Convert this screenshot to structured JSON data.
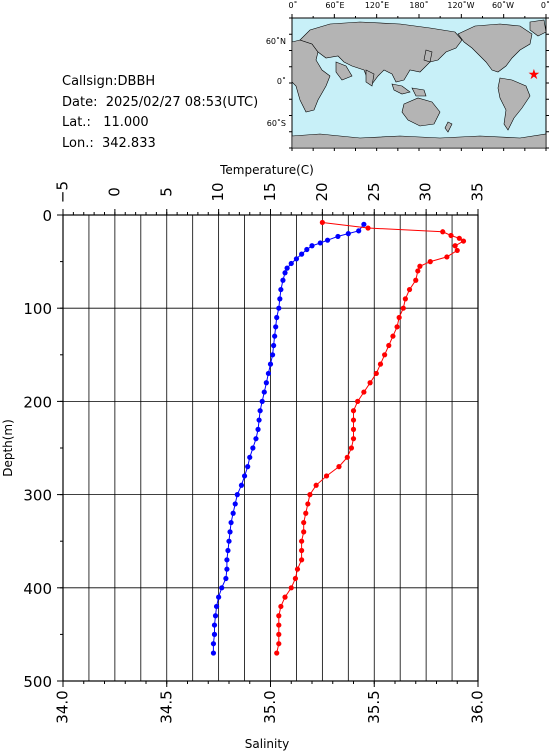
{
  "station": {
    "callsign": "Callsign:DBBH",
    "date": "Date:  2025/02/27 08:53(UTC)",
    "lat": "Lat.:   11.000",
    "lon": "Lon.:  342.833"
  },
  "map": {
    "top_labels": [
      "0˚",
      "60˚E",
      "120˚E",
      "180˚",
      "120˚W",
      "60˚W",
      "0˚"
    ],
    "left_labels": [
      "60˚N",
      "0˚",
      "60˚S"
    ],
    "ocean_color": "#c8f0f8",
    "land_color": "#b4b4b4",
    "marker_color": "#ff0000",
    "marker_lon": 342.833,
    "marker_lat": 11.0
  },
  "chart_data": {
    "type": "line",
    "y_axis": {
      "label": "Depth(m)",
      "range": [
        0,
        500
      ],
      "ticks": [
        "0",
        "100",
        "200",
        "300",
        "400",
        "500"
      ],
      "inverted": true
    },
    "temperature_axis": {
      "label": "Temperature(C)",
      "range": [
        -5,
        35
      ],
      "ticks": [
        "−5",
        "0",
        "5",
        "10",
        "15",
        "20",
        "25",
        "30",
        "35"
      ]
    },
    "salinity_axis": {
      "label": "Salinity",
      "range": [
        34.0,
        36.0
      ],
      "ticks": [
        "34.0",
        "34.5",
        "35.0",
        "35.5",
        "36.0"
      ]
    },
    "grid": true,
    "series": [
      {
        "axis": "temperature",
        "color": "#0000ff",
        "points": [
          [
            24.0,
            10
          ],
          [
            23.5,
            17
          ],
          [
            22.5,
            20
          ],
          [
            21.5,
            23
          ],
          [
            20.5,
            27
          ],
          [
            19.8,
            30
          ],
          [
            19.0,
            33
          ],
          [
            18.5,
            37
          ],
          [
            18.0,
            42
          ],
          [
            17.5,
            47
          ],
          [
            17.0,
            52
          ],
          [
            16.6,
            57
          ],
          [
            16.4,
            62
          ],
          [
            16.2,
            70
          ],
          [
            16.0,
            80
          ],
          [
            15.9,
            90
          ],
          [
            15.8,
            100
          ],
          [
            15.6,
            110
          ],
          [
            15.5,
            120
          ],
          [
            15.4,
            130
          ],
          [
            15.3,
            140
          ],
          [
            15.2,
            150
          ],
          [
            15.0,
            160
          ],
          [
            14.8,
            170
          ],
          [
            14.6,
            180
          ],
          [
            14.4,
            190
          ],
          [
            14.2,
            200
          ],
          [
            14.0,
            210
          ],
          [
            13.9,
            220
          ],
          [
            13.8,
            230
          ],
          [
            13.6,
            240
          ],
          [
            13.3,
            250
          ],
          [
            13.0,
            260
          ],
          [
            12.8,
            270
          ],
          [
            12.5,
            280
          ],
          [
            12.2,
            290
          ],
          [
            11.8,
            300
          ],
          [
            11.6,
            310
          ],
          [
            11.4,
            320
          ],
          [
            11.2,
            330
          ],
          [
            11.1,
            340
          ],
          [
            11.0,
            350
          ],
          [
            10.9,
            360
          ],
          [
            10.8,
            370
          ],
          [
            10.8,
            380
          ],
          [
            10.7,
            390
          ],
          [
            10.3,
            400
          ],
          [
            10.0,
            410
          ],
          [
            9.8,
            420
          ],
          [
            9.7,
            430
          ],
          [
            9.6,
            440
          ],
          [
            9.6,
            450
          ],
          [
            9.5,
            460
          ],
          [
            9.5,
            470
          ]
        ]
      },
      {
        "axis": "salinity",
        "color": "#ff0000",
        "points": [
          [
            35.25,
            8
          ],
          [
            35.47,
            14
          ],
          [
            35.83,
            18
          ],
          [
            35.87,
            22
          ],
          [
            35.91,
            25
          ],
          [
            35.93,
            28
          ],
          [
            35.89,
            33
          ],
          [
            35.9,
            38
          ],
          [
            35.85,
            45
          ],
          [
            35.77,
            50
          ],
          [
            35.72,
            55
          ],
          [
            35.71,
            60
          ],
          [
            35.7,
            70
          ],
          [
            35.67,
            80
          ],
          [
            35.65,
            90
          ],
          [
            35.64,
            100
          ],
          [
            35.62,
            110
          ],
          [
            35.61,
            120
          ],
          [
            35.59,
            130
          ],
          [
            35.57,
            140
          ],
          [
            35.55,
            150
          ],
          [
            35.53,
            160
          ],
          [
            35.51,
            170
          ],
          [
            35.48,
            180
          ],
          [
            35.45,
            190
          ],
          [
            35.42,
            200
          ],
          [
            35.4,
            210
          ],
          [
            35.4,
            220
          ],
          [
            35.4,
            230
          ],
          [
            35.4,
            240
          ],
          [
            35.39,
            250
          ],
          [
            35.37,
            260
          ],
          [
            35.33,
            270
          ],
          [
            35.27,
            280
          ],
          [
            35.22,
            290
          ],
          [
            35.19,
            300
          ],
          [
            35.18,
            310
          ],
          [
            35.17,
            320
          ],
          [
            35.16,
            330
          ],
          [
            35.16,
            340
          ],
          [
            35.15,
            350
          ],
          [
            35.15,
            360
          ],
          [
            35.15,
            370
          ],
          [
            35.13,
            380
          ],
          [
            35.12,
            390
          ],
          [
            35.1,
            400
          ],
          [
            35.07,
            410
          ],
          [
            35.05,
            420
          ],
          [
            35.04,
            430
          ],
          [
            35.04,
            440
          ],
          [
            35.04,
            450
          ],
          [
            35.04,
            460
          ],
          [
            35.03,
            470
          ]
        ]
      }
    ]
  }
}
